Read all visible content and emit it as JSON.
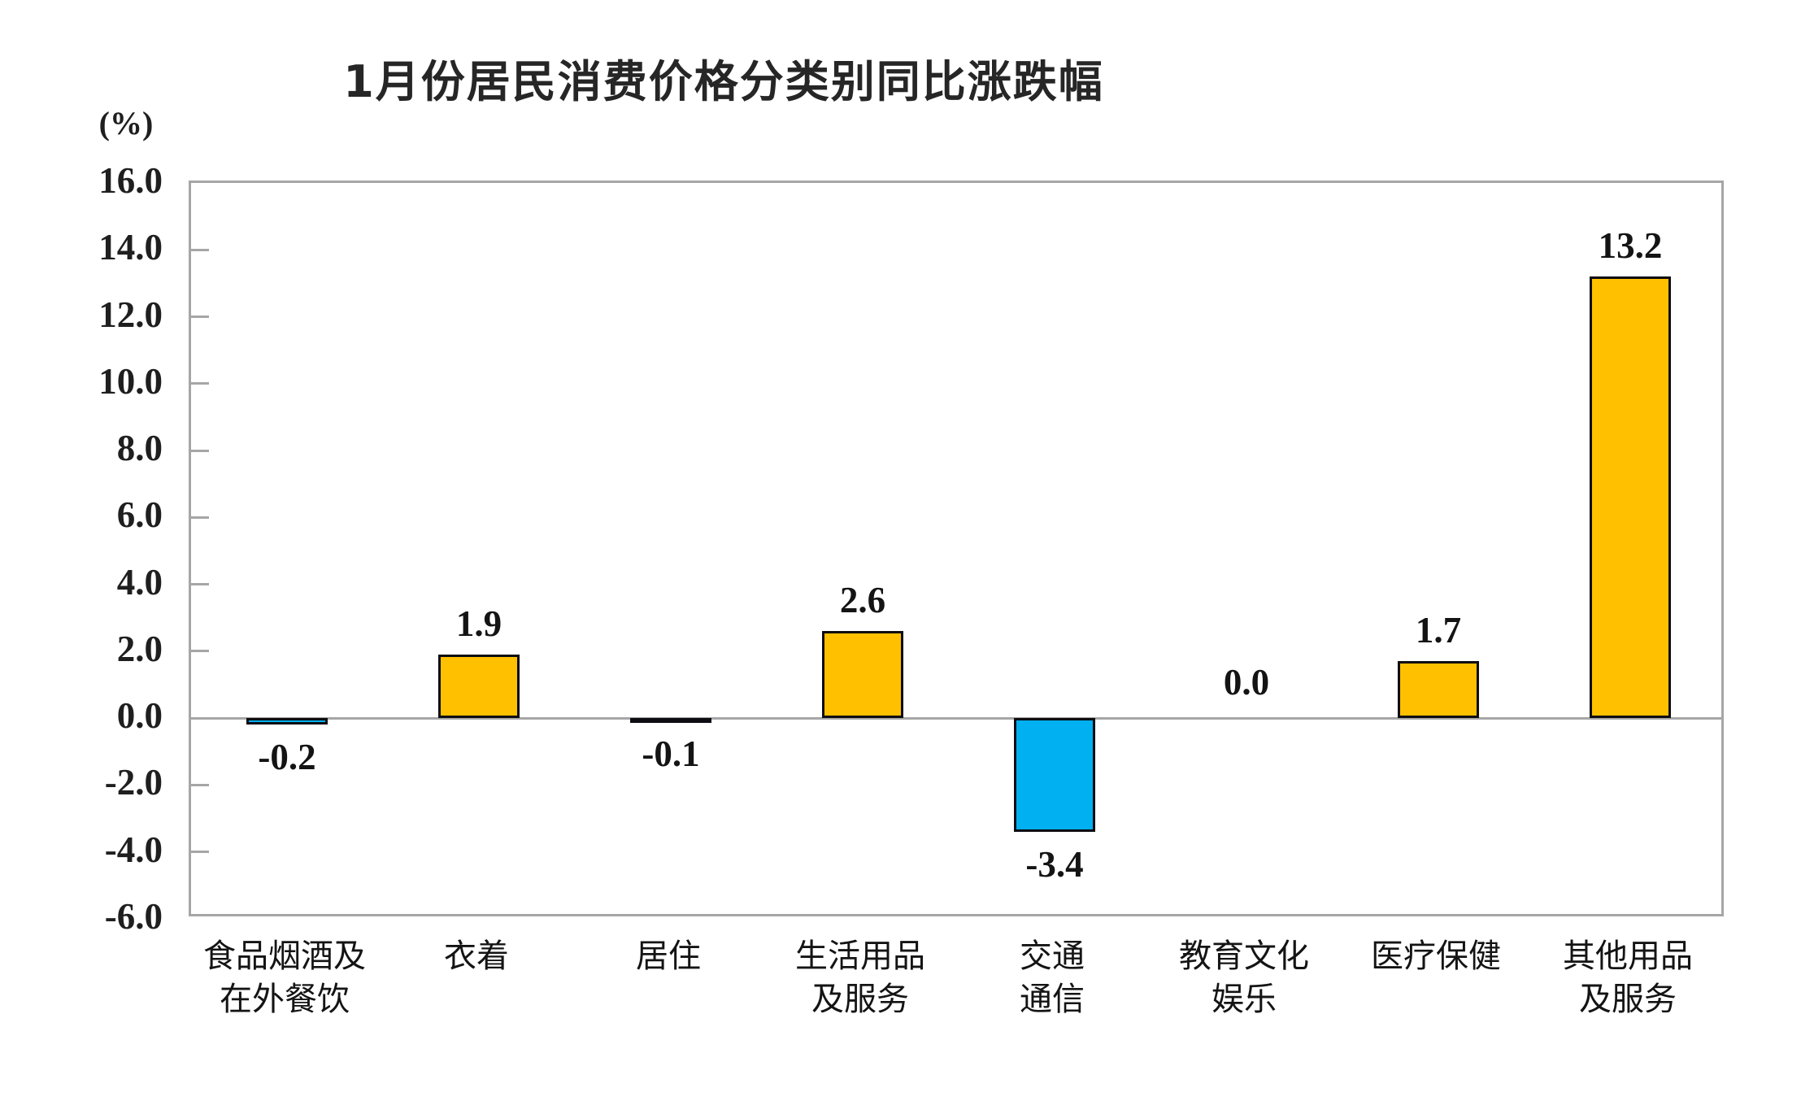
{
  "chart_data": {
    "type": "bar",
    "title": "1月份居民消费价格分类别同比涨跌幅",
    "unit_label": "(%)",
    "categories": [
      "食品烟酒及\n在外餐饮",
      "衣着",
      "居住",
      "生活用品\n及服务",
      "交通\n通信",
      "教育文化\n娱乐",
      "医疗保健",
      "其他用品\n及服务"
    ],
    "values": [
      -0.2,
      1.9,
      -0.1,
      2.6,
      -3.4,
      0.0,
      1.7,
      13.2
    ],
    "value_labels": [
      "-0.2",
      "1.9",
      "-0.1",
      "2.6",
      "-3.4",
      "0.0",
      "1.7",
      "13.2"
    ],
    "xlabel": "",
    "ylabel": "(%)",
    "ylim": [
      -6.0,
      16.0
    ],
    "ytick_step": 2.0,
    "ytick_labels": [
      "16.0",
      "14.0",
      "12.0",
      "10.0",
      "8.0",
      "6.0",
      "4.0",
      "2.0",
      "0.0",
      "-2.0",
      "-4.0",
      "-6.0"
    ],
    "grid": "off",
    "legend": "none",
    "colors": {
      "positive_bar": "#FFC000",
      "negative_bar": "#00B0F0",
      "bar_outline": "#0d0d12",
      "axis": "#a6a6a6",
      "text": "#1f1f1f"
    }
  }
}
